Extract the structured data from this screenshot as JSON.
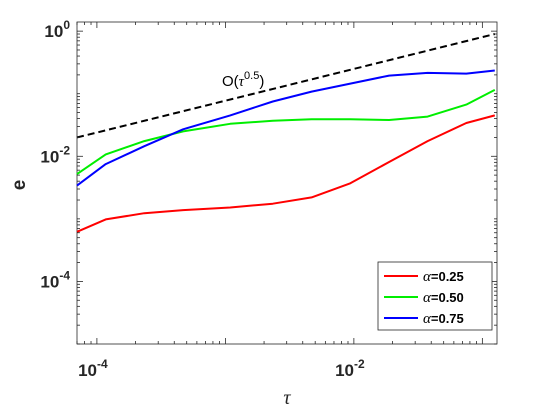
{
  "chart_data": {
    "type": "line",
    "xscale": "log",
    "yscale": "log",
    "xlim": [
      7e-05,
      0.13
    ],
    "ylim": [
      1e-05,
      1.4
    ],
    "xlabel": "τ",
    "ylabel": "e",
    "xticks": [
      {
        "value": 0.0001,
        "base": "10",
        "exp": "-4"
      },
      {
        "value": 0.01,
        "base": "10",
        "exp": "-2"
      }
    ],
    "yticks": [
      {
        "value": 1,
        "base": "10",
        "exp": "0"
      },
      {
        "value": 0.01,
        "base": "10",
        "exp": "-2"
      },
      {
        "value": 0.0001,
        "base": "10",
        "exp": "-4"
      }
    ],
    "grid": false,
    "legend_position": "bottom-right",
    "reference_line": {
      "label_prefix": "O(",
      "label_greek": "τ",
      "label_exp": "0.5",
      "label_suffix": ")",
      "color": "#000000",
      "dash": true,
      "x": [
        7e-05,
        0.125
      ],
      "y": [
        0.02,
        0.9
      ]
    },
    "series": [
      {
        "name_greek": "α",
        "name_value": "=0.25",
        "color": "#ff0000",
        "x": [
          7e-05,
          0.000117,
          0.000234,
          0.000469,
          0.00109,
          0.00234,
          0.00469,
          0.00938,
          0.0188,
          0.0375,
          0.075,
          0.125
        ],
        "y": [
          0.00062,
          0.00098,
          0.00123,
          0.00138,
          0.00152,
          0.00175,
          0.0022,
          0.0037,
          0.0081,
          0.0175,
          0.034,
          0.045
        ]
      },
      {
        "name_greek": "α",
        "name_value": "=0.50",
        "color": "#00ee00",
        "x": [
          7e-05,
          0.000117,
          0.000234,
          0.000469,
          0.00109,
          0.00234,
          0.00469,
          0.00938,
          0.0188,
          0.0375,
          0.075,
          0.125
        ],
        "y": [
          0.0052,
          0.0107,
          0.0175,
          0.025,
          0.033,
          0.037,
          0.039,
          0.039,
          0.038,
          0.043,
          0.067,
          0.115
        ]
      },
      {
        "name_greek": "α",
        "name_value": "=0.75",
        "color": "#0000ff",
        "x": [
          7e-05,
          0.000117,
          0.000234,
          0.000469,
          0.00109,
          0.00234,
          0.00469,
          0.00938,
          0.0188,
          0.0375,
          0.075,
          0.125
        ],
        "y": [
          0.0034,
          0.0075,
          0.0145,
          0.027,
          0.045,
          0.075,
          0.108,
          0.145,
          0.195,
          0.215,
          0.21,
          0.235
        ]
      }
    ]
  }
}
